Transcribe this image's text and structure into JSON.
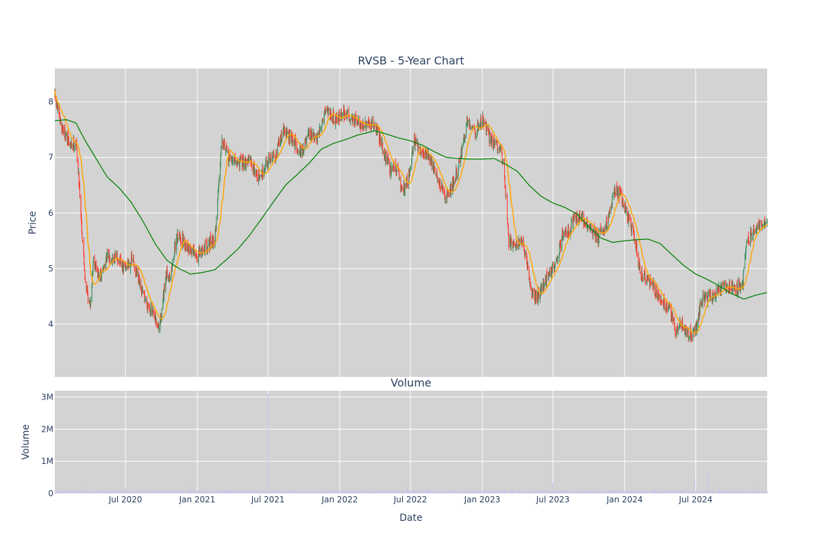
{
  "chart_data": {
    "type": "candlestick",
    "title": "RVSB - 5-Year Chart",
    "colors": {
      "increasing": "#3d8c5a",
      "decreasing": "#ff3b30",
      "ma_short": "#ffa500",
      "ma_long": "#008000",
      "volume": "#c6c6e8",
      "plot_bg": "#d3d3d3",
      "grid": "#ffffff"
    },
    "price_panel": {
      "ylabel": "Price",
      "ylim": [
        3.05,
        8.6
      ],
      "yticks": [
        {
          "v": 4,
          "label": "4"
        },
        {
          "v": 5,
          "label": "5"
        },
        {
          "v": 6,
          "label": "6"
        },
        {
          "v": 7,
          "label": "7"
        },
        {
          "v": 8,
          "label": "8"
        }
      ],
      "grid": true,
      "anchors": [
        [
          "2020-01-02",
          8.1
        ],
        [
          "2020-01-15",
          7.65
        ],
        [
          "2020-02-10",
          7.2
        ],
        [
          "2020-02-25",
          7.3
        ],
        [
          "2020-03-05",
          6.5
        ],
        [
          "2020-03-12",
          5.6
        ],
        [
          "2020-03-20",
          4.8
        ],
        [
          "2020-04-01",
          4.3
        ],
        [
          "2020-04-10",
          5.2
        ],
        [
          "2020-04-25",
          4.8
        ],
        [
          "2020-05-15",
          5.2
        ],
        [
          "2020-06-10",
          5.2
        ],
        [
          "2020-06-25",
          5.0
        ],
        [
          "2020-07-20",
          5.15
        ],
        [
          "2020-08-10",
          4.6
        ],
        [
          "2020-09-01",
          4.3
        ],
        [
          "2020-09-25",
          3.9
        ],
        [
          "2020-10-15",
          4.9
        ],
        [
          "2020-10-25",
          4.9
        ],
        [
          "2020-11-10",
          5.6
        ],
        [
          "2020-12-01",
          5.45
        ],
        [
          "2021-01-01",
          5.2
        ],
        [
          "2021-01-20",
          5.4
        ],
        [
          "2021-02-15",
          5.5
        ],
        [
          "2021-03-05",
          7.4
        ],
        [
          "2021-03-20",
          7.0
        ],
        [
          "2021-04-15",
          6.9
        ],
        [
          "2021-05-15",
          6.95
        ],
        [
          "2021-06-10",
          6.6
        ],
        [
          "2021-06-25",
          6.9
        ],
        [
          "2021-07-20",
          7.05
        ],
        [
          "2021-08-10",
          7.5
        ],
        [
          "2021-09-01",
          7.3
        ],
        [
          "2021-09-25",
          7.1
        ],
        [
          "2021-10-15",
          7.4
        ],
        [
          "2021-11-05",
          7.3
        ],
        [
          "2021-11-25",
          7.9
        ],
        [
          "2021-12-20",
          7.7
        ],
        [
          "2022-01-15",
          7.8
        ],
        [
          "2022-02-10",
          7.65
        ],
        [
          "2022-03-10",
          7.55
        ],
        [
          "2022-04-01",
          7.6
        ],
        [
          "2022-04-20",
          7.2
        ],
        [
          "2022-05-10",
          6.8
        ],
        [
          "2022-05-25",
          6.85
        ],
        [
          "2022-06-10",
          6.4
        ],
        [
          "2022-06-25",
          6.6
        ],
        [
          "2022-07-10",
          7.3
        ],
        [
          "2022-07-25",
          7.1
        ],
        [
          "2022-08-15",
          7.05
        ],
        [
          "2022-09-05",
          6.7
        ],
        [
          "2022-09-25",
          6.3
        ],
        [
          "2022-10-10",
          6.4
        ],
        [
          "2022-11-01",
          6.8
        ],
        [
          "2022-11-25",
          7.7
        ],
        [
          "2022-12-15",
          7.45
        ],
        [
          "2023-01-01",
          7.7
        ],
        [
          "2023-01-20",
          7.35
        ],
        [
          "2023-02-10",
          7.2
        ],
        [
          "2023-02-25",
          6.9
        ],
        [
          "2023-03-10",
          5.5
        ],
        [
          "2023-03-25",
          5.45
        ],
        [
          "2023-04-10",
          5.5
        ],
        [
          "2023-04-25",
          5.1
        ],
        [
          "2023-05-10",
          4.5
        ],
        [
          "2023-05-25",
          4.5
        ],
        [
          "2023-06-20",
          4.9
        ],
        [
          "2023-07-10",
          5.1
        ],
        [
          "2023-07-25",
          5.6
        ],
        [
          "2023-08-10",
          5.65
        ],
        [
          "2023-08-25",
          5.9
        ],
        [
          "2023-09-15",
          5.9
        ],
        [
          "2023-10-05",
          5.7
        ],
        [
          "2023-10-25",
          5.55
        ],
        [
          "2023-11-20",
          5.9
        ],
        [
          "2023-12-05",
          6.4
        ],
        [
          "2023-12-20",
          6.35
        ],
        [
          "2024-01-10",
          5.9
        ],
        [
          "2024-01-25",
          5.6
        ],
        [
          "2024-02-10",
          4.9
        ],
        [
          "2024-03-01",
          4.8
        ],
        [
          "2024-03-20",
          4.6
        ],
        [
          "2024-04-10",
          4.4
        ],
        [
          "2024-04-25",
          4.25
        ],
        [
          "2024-05-10",
          3.9
        ],
        [
          "2024-05-25",
          4.0
        ],
        [
          "2024-06-15",
          3.8
        ],
        [
          "2024-06-30",
          3.9
        ],
        [
          "2024-07-15",
          4.4
        ],
        [
          "2024-08-01",
          4.5
        ],
        [
          "2024-08-20",
          4.55
        ],
        [
          "2024-09-10",
          4.65
        ],
        [
          "2024-09-25",
          4.7
        ],
        [
          "2024-10-15",
          4.65
        ],
        [
          "2024-10-30",
          4.75
        ],
        [
          "2024-11-06",
          5.4
        ],
        [
          "2024-11-20",
          5.6
        ],
        [
          "2024-12-05",
          5.75
        ],
        [
          "2024-12-31",
          5.8
        ]
      ],
      "ma_long_anchors": [
        [
          "2020-01-02",
          7.66
        ],
        [
          "2020-02-01",
          7.68
        ],
        [
          "2020-02-25",
          7.62
        ],
        [
          "2020-03-20",
          7.3
        ],
        [
          "2020-04-15",
          7.0
        ],
        [
          "2020-05-15",
          6.65
        ],
        [
          "2020-06-15",
          6.45
        ],
        [
          "2020-07-15",
          6.2
        ],
        [
          "2020-08-15",
          5.85
        ],
        [
          "2020-09-15",
          5.45
        ],
        [
          "2020-10-15",
          5.15
        ],
        [
          "2020-11-15",
          5.0
        ],
        [
          "2020-12-15",
          4.9
        ],
        [
          "2021-01-15",
          4.93
        ],
        [
          "2021-02-15",
          4.98
        ],
        [
          "2021-03-15",
          5.15
        ],
        [
          "2021-04-15",
          5.35
        ],
        [
          "2021-05-15",
          5.6
        ],
        [
          "2021-06-15",
          5.9
        ],
        [
          "2021-07-15",
          6.2
        ],
        [
          "2021-08-15",
          6.5
        ],
        [
          "2021-09-15",
          6.7
        ],
        [
          "2021-10-15",
          6.9
        ],
        [
          "2021-11-15",
          7.15
        ],
        [
          "2021-12-15",
          7.25
        ],
        [
          "2022-01-15",
          7.32
        ],
        [
          "2022-02-15",
          7.4
        ],
        [
          "2022-03-15",
          7.45
        ],
        [
          "2022-04-01",
          7.48
        ],
        [
          "2022-05-01",
          7.42
        ],
        [
          "2022-06-01",
          7.35
        ],
        [
          "2022-07-01",
          7.3
        ],
        [
          "2022-08-01",
          7.22
        ],
        [
          "2022-09-01",
          7.1
        ],
        [
          "2022-10-01",
          7.0
        ],
        [
          "2022-11-01",
          6.98
        ],
        [
          "2022-12-01",
          6.97
        ],
        [
          "2023-01-01",
          6.97
        ],
        [
          "2023-02-01",
          6.98
        ],
        [
          "2023-03-01",
          6.88
        ],
        [
          "2023-04-01",
          6.75
        ],
        [
          "2023-05-01",
          6.5
        ],
        [
          "2023-06-01",
          6.3
        ],
        [
          "2023-07-01",
          6.18
        ],
        [
          "2023-08-01",
          6.1
        ],
        [
          "2023-09-01",
          5.98
        ],
        [
          "2023-10-01",
          5.75
        ],
        [
          "2023-11-01",
          5.55
        ],
        [
          "2023-12-01",
          5.47
        ],
        [
          "2024-01-01",
          5.5
        ],
        [
          "2024-02-01",
          5.52
        ],
        [
          "2024-03-01",
          5.53
        ],
        [
          "2024-04-01",
          5.45
        ],
        [
          "2024-05-01",
          5.25
        ],
        [
          "2024-06-01",
          5.05
        ],
        [
          "2024-07-01",
          4.9
        ],
        [
          "2024-08-01",
          4.8
        ],
        [
          "2024-09-01",
          4.68
        ],
        [
          "2024-10-01",
          4.55
        ],
        [
          "2024-11-01",
          4.45
        ],
        [
          "2024-12-01",
          4.52
        ],
        [
          "2024-12-31",
          4.57
        ]
      ]
    },
    "volume_panel": {
      "title": "Volume",
      "ylabel": "Volume",
      "ylim": [
        0,
        3200000
      ],
      "yticks": [
        {
          "v": 0,
          "label": "0"
        },
        {
          "v": 1000000,
          "label": "1M"
        },
        {
          "v": 2000000,
          "label": "2M"
        },
        {
          "v": 3000000,
          "label": "3M"
        }
      ],
      "typical_volume": 60000,
      "spikes": [
        [
          "2020-03-12",
          180000
        ],
        [
          "2020-07-01",
          160000
        ],
        [
          "2020-12-18",
          250000
        ],
        [
          "2021-03-26",
          150000
        ],
        [
          "2021-06-30",
          3100000
        ],
        [
          "2022-06-24",
          260000
        ],
        [
          "2022-08-12",
          170000
        ],
        [
          "2022-12-16",
          150000
        ],
        [
          "2023-03-17",
          150000
        ],
        [
          "2023-06-30",
          330000
        ],
        [
          "2024-03-15",
          150000
        ],
        [
          "2024-06-28",
          500000
        ],
        [
          "2024-07-31",
          560000
        ],
        [
          "2024-08-30",
          170000
        ],
        [
          "2024-11-27",
          250000
        ]
      ]
    },
    "x_axis": {
      "xlabel": "Date",
      "range": [
        "2020-01-02",
        "2024-12-31"
      ],
      "ticks": [
        {
          "date": "2020-07-01",
          "label": "Jul 2020"
        },
        {
          "date": "2021-01-01",
          "label": "Jan 2021"
        },
        {
          "date": "2021-07-01",
          "label": "Jul 2021"
        },
        {
          "date": "2022-01-01",
          "label": "Jan 2022"
        },
        {
          "date": "2022-07-01",
          "label": "Jul 2022"
        },
        {
          "date": "2023-01-01",
          "label": "Jan 2023"
        },
        {
          "date": "2023-07-01",
          "label": "Jul 2023"
        },
        {
          "date": "2024-01-01",
          "label": "Jan 2024"
        },
        {
          "date": "2024-07-01",
          "label": "Jul 2024"
        }
      ]
    }
  }
}
